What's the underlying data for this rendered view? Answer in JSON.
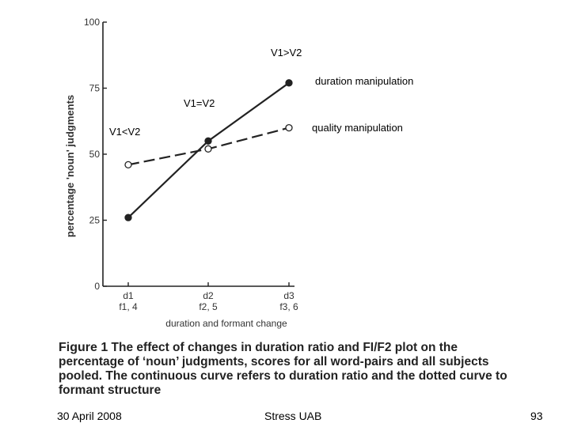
{
  "chart_data": {
    "type": "line",
    "ylabel": "percentage 'noun' judgments",
    "xlabel": "duration and formant change",
    "ylim": [
      0,
      100
    ],
    "yticks": [
      0,
      25,
      50,
      75,
      100
    ],
    "categories": [
      {
        "top": "d1",
        "bottom": "f1, 4"
      },
      {
        "top": "d2",
        "bottom": "f2, 5"
      },
      {
        "top": "d3",
        "bottom": "f3, 6"
      }
    ],
    "series": [
      {
        "name": "duration manipulation",
        "values": [
          26,
          55,
          77
        ],
        "style": "solid",
        "marker": "filled"
      },
      {
        "name": "quality manipulation",
        "values": [
          46,
          52,
          60
        ],
        "style": "dashed",
        "marker": "open"
      }
    ],
    "annotations": [
      "V1>V2",
      "V1=V2",
      "V1<V2"
    ],
    "line_color": "#222222"
  },
  "caption": {
    "label": "Figure 1",
    "text": "The effect of changes in duration ratio and FI/F2 plot on the percentage of ‘noun’ judgments, scores for all word-pairs and all subjects pooled. The continuous curve refers to duration ratio and the dotted curve to formant structure"
  },
  "footer": {
    "date": "30 April 2008",
    "center": "Stress UAB",
    "page": "93"
  }
}
